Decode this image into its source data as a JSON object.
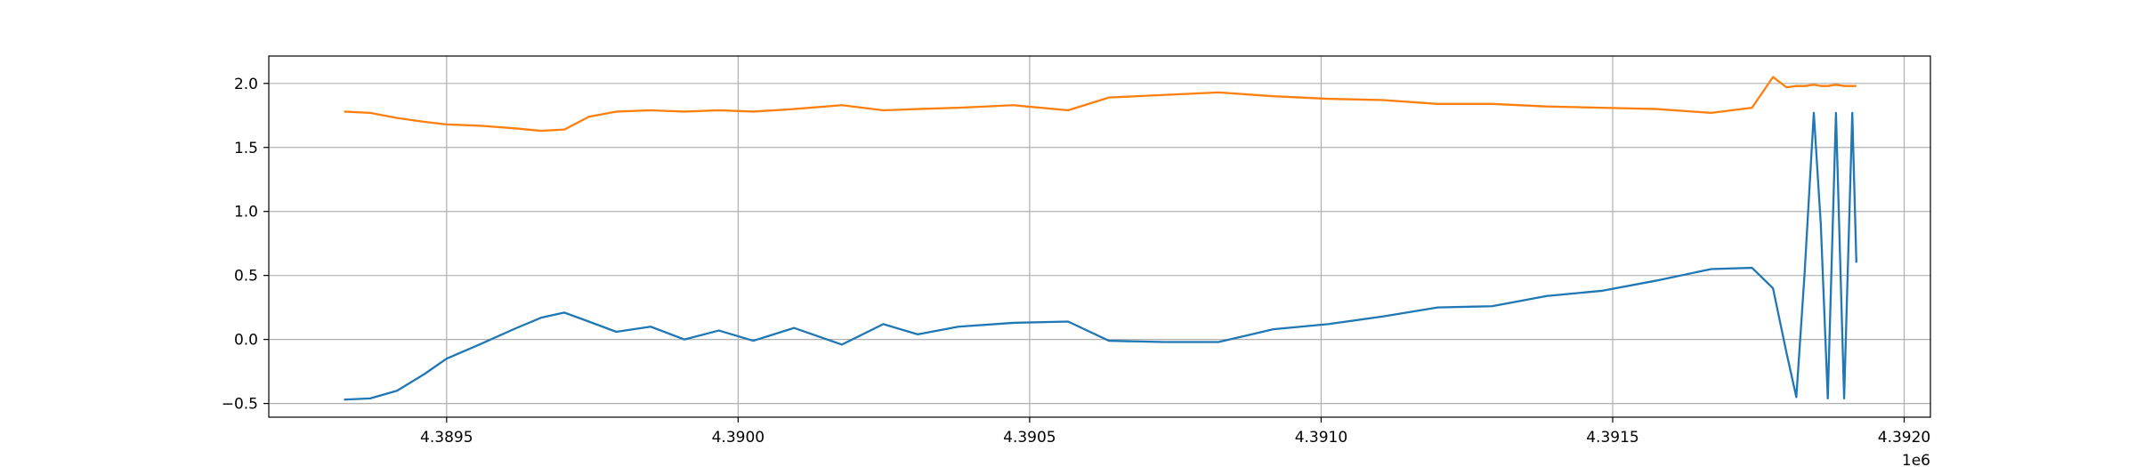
{
  "chart_data": {
    "type": "line",
    "x": [
      4389324,
      4389369,
      4389415,
      4389462,
      4389500,
      4389556,
      4389615,
      4389662,
      4389702,
      4389744,
      4389791,
      4389850,
      4389908,
      4389967,
      4390026,
      4390096,
      4390178,
      4390249,
      4390308,
      4390378,
      4390472,
      4390566,
      4390636,
      4390730,
      4390824,
      4390918,
      4391012,
      4391106,
      4391200,
      4391293,
      4391387,
      4391481,
      4391575,
      4391669,
      4391739,
      4391775,
      4391798,
      4391815,
      4391829,
      4391845,
      4391857,
      4391869,
      4391883,
      4391897,
      4391911,
      4391918
    ],
    "series": [
      {
        "color": "#1f77b4",
        "values": [
          -0.47,
          -0.46,
          -0.4,
          -0.27,
          -0.15,
          -0.04,
          0.08,
          0.17,
          0.21,
          0.14,
          0.06,
          0.1,
          0.0,
          0.07,
          -0.01,
          0.09,
          -0.04,
          0.12,
          0.04,
          0.1,
          0.13,
          0.14,
          -0.01,
          -0.02,
          -0.02,
          0.08,
          0.12,
          0.18,
          0.25,
          0.26,
          0.34,
          0.38,
          0.46,
          0.55,
          0.56,
          0.4,
          -0.1,
          -0.45,
          0.5,
          1.77,
          0.9,
          -0.46,
          1.77,
          -0.46,
          1.77,
          0.6
        ]
      },
      {
        "color": "#ff7f0e",
        "values": [
          1.78,
          1.77,
          1.73,
          1.7,
          1.68,
          1.67,
          1.65,
          1.63,
          1.64,
          1.74,
          1.78,
          1.79,
          1.78,
          1.79,
          1.78,
          1.8,
          1.83,
          1.79,
          1.8,
          1.81,
          1.83,
          1.79,
          1.89,
          1.91,
          1.93,
          1.9,
          1.88,
          1.87,
          1.84,
          1.84,
          1.82,
          1.81,
          1.8,
          1.77,
          1.81,
          2.05,
          1.97,
          1.98,
          1.98,
          1.99,
          1.98,
          1.98,
          1.99,
          1.98,
          1.98,
          1.98
        ]
      }
    ],
    "xlim": [
      4389195,
      4392045
    ],
    "ylim": [
      -0.607,
      2.214
    ],
    "xticks": [
      {
        "value": 4389500,
        "label": "4.3895"
      },
      {
        "value": 4390000,
        "label": "4.3900"
      },
      {
        "value": 4390500,
        "label": "4.3905"
      },
      {
        "value": 4391000,
        "label": "4.3910"
      },
      {
        "value": 4391500,
        "label": "4.3915"
      },
      {
        "value": 4392000,
        "label": "4.3920"
      }
    ],
    "yticks": [
      {
        "value": -0.5,
        "label": "−0.5"
      },
      {
        "value": 0,
        "label": "0.0"
      },
      0.5,
      {
        "value": 1,
        "label": "1.0"
      },
      1.5,
      {
        "value": 2,
        "label": "2.0"
      }
    ],
    "x_offset_label": "1e6",
    "grid": true
  }
}
